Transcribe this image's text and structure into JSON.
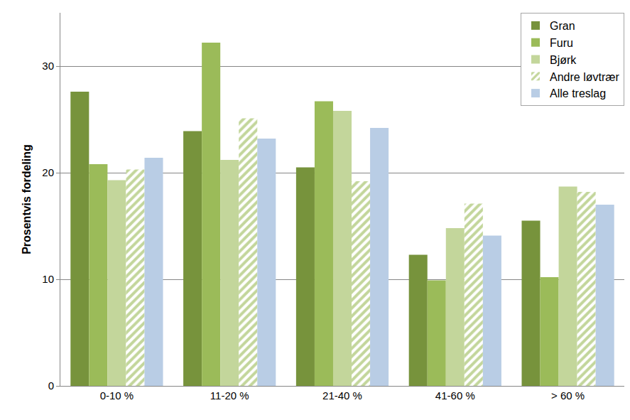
{
  "chart_data": {
    "type": "bar",
    "y_label": "Prosentvis fordeling",
    "categories": [
      "0-10 %",
      "11-20 %",
      "21-40 %",
      "41-60 %",
      "> 60 %"
    ],
    "series": [
      {
        "name": "Gran",
        "color": "#77933C",
        "values": [
          27.6,
          23.9,
          20.5,
          12.3,
          15.5
        ]
      },
      {
        "name": "Furu",
        "color": "#9BBB59",
        "values": [
          20.8,
          32.2,
          26.7,
          9.9,
          10.2
        ]
      },
      {
        "name": "Bjørk",
        "color": "#C3D69B",
        "values": [
          19.3,
          21.2,
          25.8,
          14.8,
          18.7
        ]
      },
      {
        "name": "Andre løvtrær",
        "color": "#C3D69B",
        "marker": "hatch",
        "values": [
          20.3,
          25.1,
          19.2,
          17.1,
          18.2
        ]
      },
      {
        "name": "Alle treslag",
        "color": "#B9CDE5",
        "values": [
          21.4,
          23.2,
          24.2,
          14.1,
          17.0
        ]
      }
    ],
    "ylim": [
      0,
      35
    ],
    "yticks": [
      0,
      10,
      20,
      30
    ],
    "grid": true,
    "legend": "top right"
  }
}
